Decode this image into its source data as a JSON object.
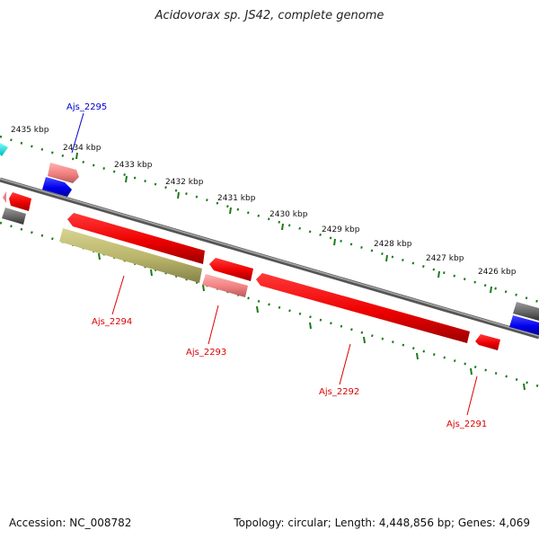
{
  "title": "Acidovorax sp. JS42, complete genome",
  "footer": {
    "accession": "Accession: NC_008782",
    "summary": "Topology: circular; Length: 4,448,856 bp; Genes: 4,069"
  },
  "scale_labels": [
    "2435 kbp",
    "2434 kbp",
    "2433 kbp",
    "2432 kbp",
    "2431 kbp",
    "2430 kbp",
    "2429 kbp",
    "2428 kbp",
    "2427 kbp",
    "2426 kbp"
  ],
  "genes": [
    {
      "id": "Ajs_2295",
      "label": "Ajs_2295",
      "color": "#0000cc",
      "strand": "forward"
    },
    {
      "id": "Ajs_2294",
      "label": "Ajs_2294",
      "color": "#dd0000",
      "strand": "reverse"
    },
    {
      "id": "Ajs_2293",
      "label": "Ajs_2293",
      "color": "#dd0000",
      "strand": "reverse"
    },
    {
      "id": "Ajs_2292",
      "label": "Ajs_2292",
      "color": "#dd0000",
      "strand": "reverse"
    },
    {
      "id": "Ajs_2291",
      "label": "Ajs_2291",
      "color": "#dd0000",
      "strand": "reverse"
    }
  ],
  "colors": {
    "forward_gene": "#0000ee",
    "reverse_gene": "#ee0000",
    "rna_gene": "#f08080",
    "pseudo_gene": "#b8b46a",
    "other_feature": "#666666",
    "tick": "#1a7a1a",
    "backbone": "#777777"
  }
}
